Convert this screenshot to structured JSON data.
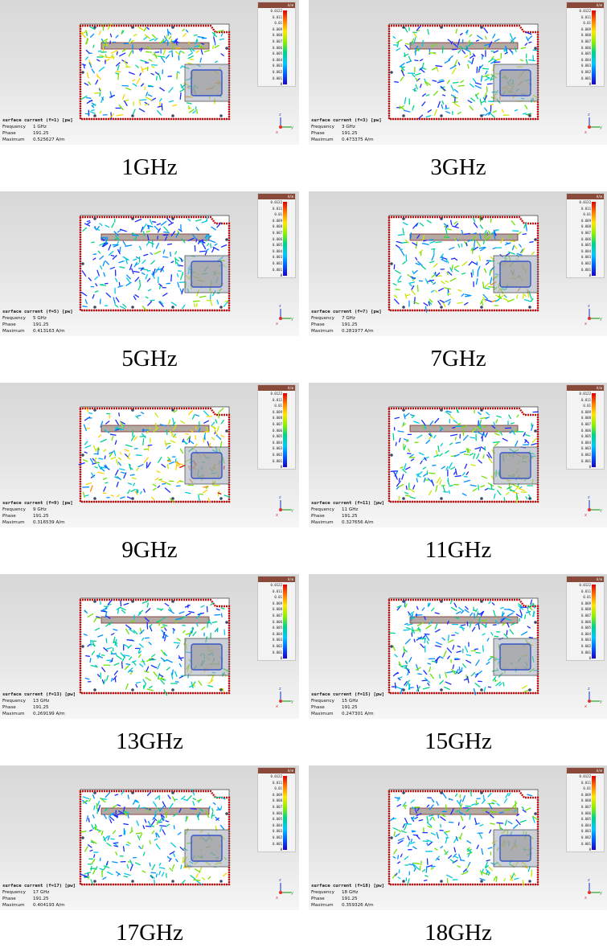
{
  "colorbar": {
    "unit": "A/m",
    "ticks": [
      "0.0122",
      "0.011",
      "0.01",
      "0.009",
      "0.008",
      "0.007",
      "0.006",
      "0.005",
      "0.004",
      "0.003",
      "0.002",
      "0.001",
      "0"
    ]
  },
  "labels": {
    "frequency": "Frequency",
    "phase": "Phase",
    "maximum": "Maximum"
  },
  "panels": [
    {
      "header": "surface current (f=1) [pw]",
      "frequency": "1 GHz",
      "phase": "191.25",
      "maximum": "0.525627 A/m",
      "caption": "1GHz"
    },
    {
      "header": "surface current (f=3) [pw]",
      "frequency": "3 GHz",
      "phase": "191.25",
      "maximum": "0.473375 A/m",
      "caption": "3GHz"
    },
    {
      "header": "surface current (f=5) [pw]",
      "frequency": "5 GHz",
      "phase": "191.25",
      "maximum": "0.413163 A/m",
      "caption": "5GHz"
    },
    {
      "header": "surface current (f=7) [pw]",
      "frequency": "7 GHz",
      "phase": "191.25",
      "maximum": "0.281977 A/m",
      "caption": "7GHz"
    },
    {
      "header": "surface current (f=9) [pw]",
      "frequency": "9 GHz",
      "phase": "191.25",
      "maximum": "0.316539 A/m",
      "caption": "9GHz"
    },
    {
      "header": "surface current (f=11) [pw]",
      "frequency": "11 GHz",
      "phase": "191.25",
      "maximum": "0.327656 A/m",
      "caption": "11GHz"
    },
    {
      "header": "surface current (f=13) [pw]",
      "frequency": "13 GHz",
      "phase": "191.25",
      "maximum": "0.269199 A/m",
      "caption": "13GHz"
    },
    {
      "header": "surface current (f=15) [pw]",
      "frequency": "15 GHz",
      "phase": "191.25",
      "maximum": "0.247301 A/m",
      "caption": "15GHz"
    },
    {
      "header": "surface current (f=17) [pw]",
      "frequency": "17 GHz",
      "phase": "191.25",
      "maximum": "0.404193 A/m",
      "caption": "17GHz"
    },
    {
      "header": "surface current (f=18) [pw]",
      "frequency": "18 GHz",
      "phase": "191.25",
      "maximum": "0.359326 A/m",
      "caption": "18GHz"
    }
  ],
  "axis_labels": {
    "z": "z",
    "y": "y",
    "x": "x"
  }
}
